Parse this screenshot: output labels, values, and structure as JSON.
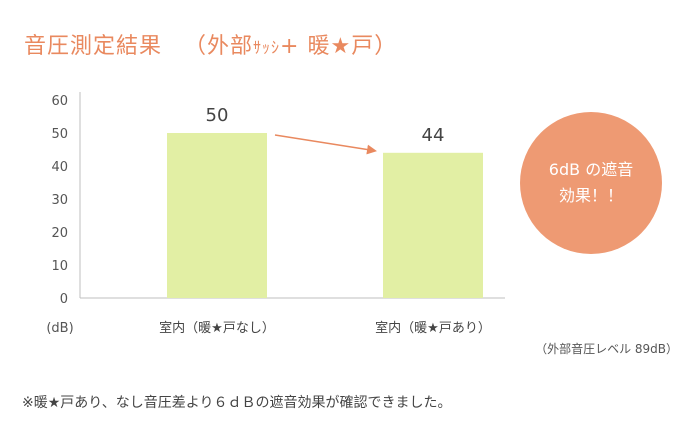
{
  "title": {
    "main": "音圧測定結果",
    "paren_open": "（外部",
    "paren_small": "ｻｯｼ",
    "paren_rest": "+ 暖★戸）"
  },
  "chart_data": {
    "type": "bar",
    "categories": [
      "室内（暖★戸なし）",
      "室内（暖★戸あり）"
    ],
    "values": [
      50,
      44
    ],
    "value_labels": [
      "50",
      "44"
    ],
    "ylabel": "(dB)",
    "ylim": [
      0,
      60
    ],
    "yticks": [
      "0",
      "10",
      "20",
      "30",
      "40",
      "50",
      "60"
    ],
    "grid": false,
    "legend": "none",
    "colors": {
      "bar": "#e2efa4",
      "axis": "#bfbfbf",
      "arrow": "#e9895f"
    },
    "annotation": {
      "line1": "6dB の遮音",
      "line2": "効果！！"
    },
    "note": "（外部音圧レベル 89dB）"
  },
  "footnote": "※暖★戸あり、なし音圧差より６ｄＢの遮音効果が確認できました。",
  "colors": {
    "title": "#e9895f",
    "badge": "#ee9a73"
  }
}
